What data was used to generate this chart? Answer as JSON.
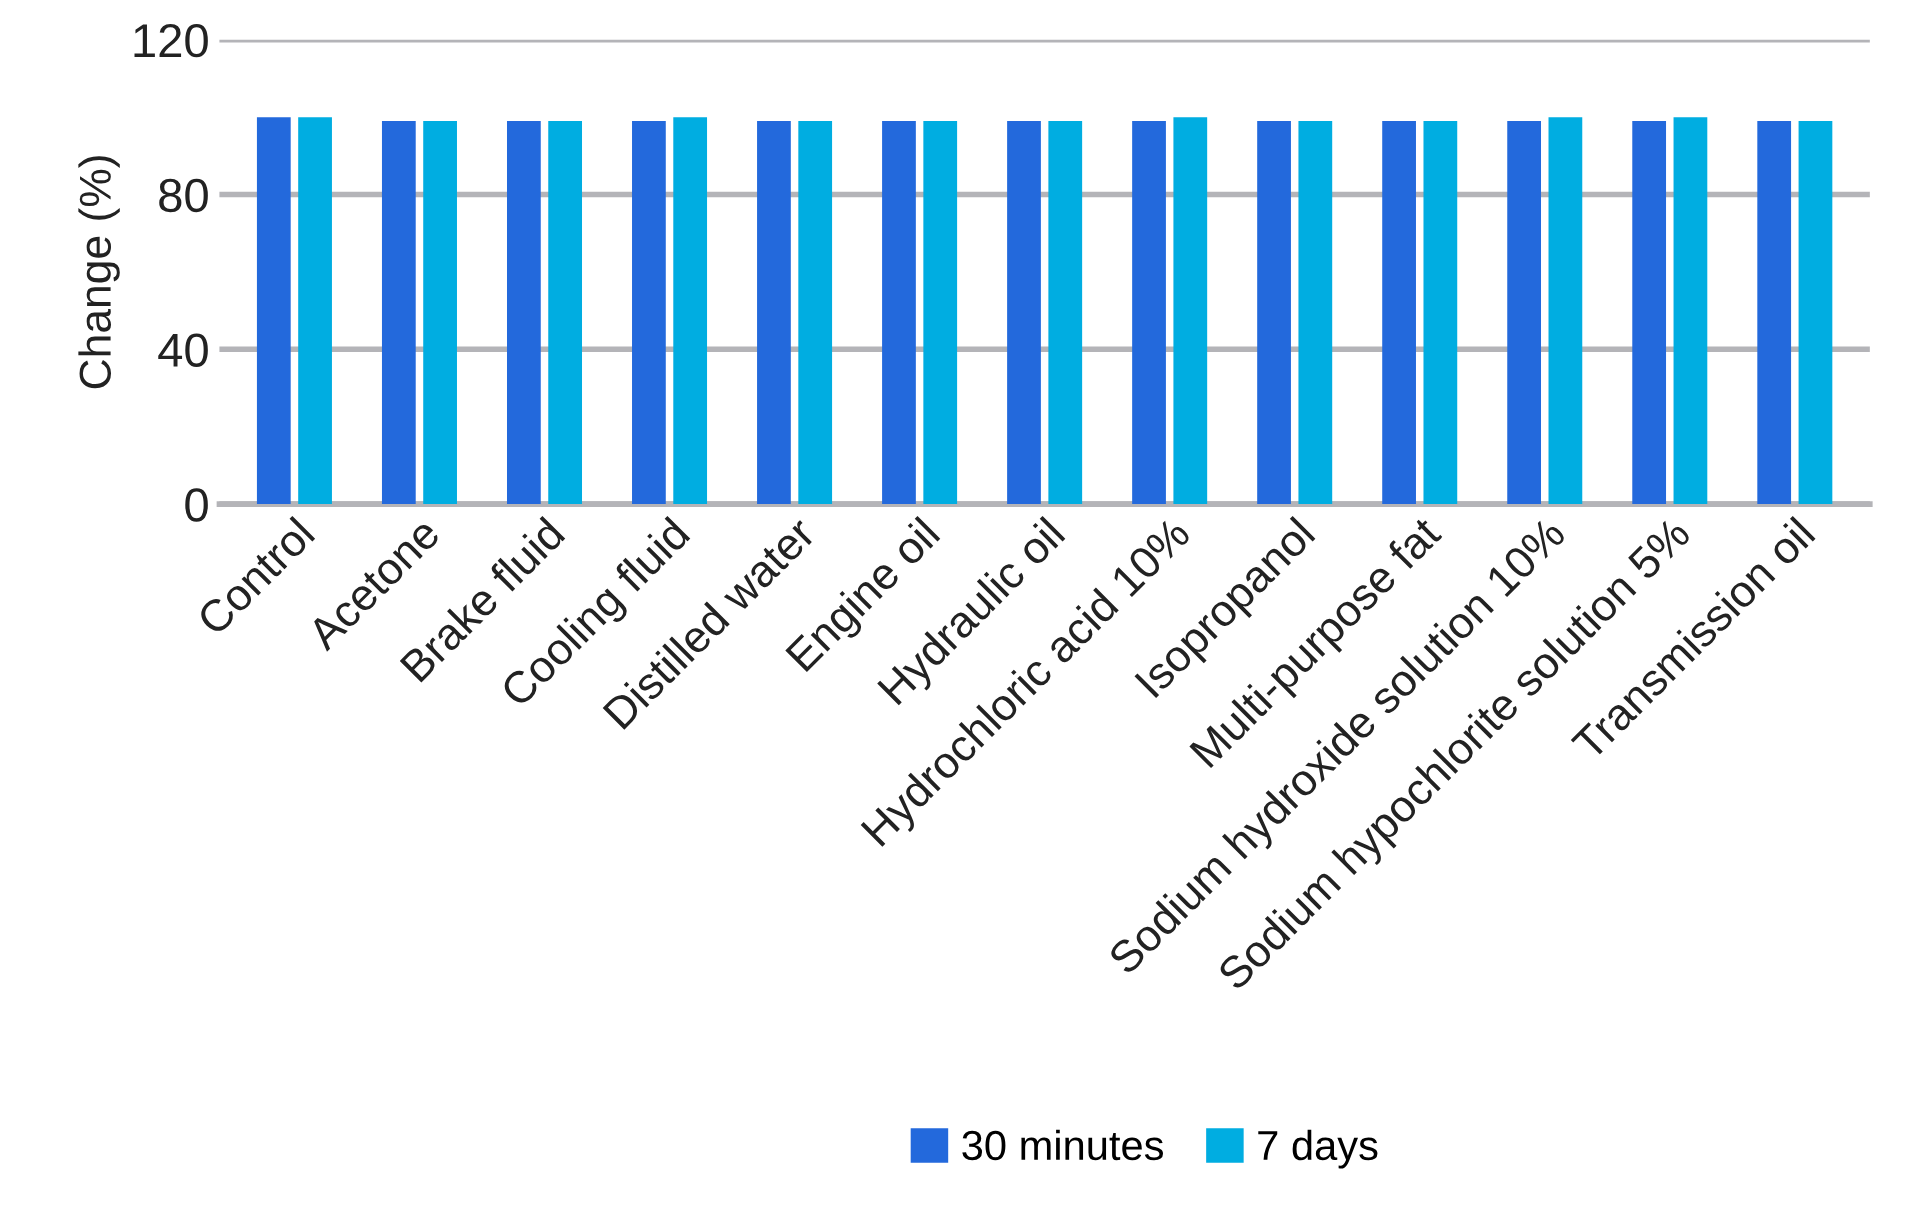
{
  "chart_data": {
    "type": "bar",
    "ylabel": "Change (%)",
    "categories": [
      "Control",
      "Acetone",
      "Brake fluid",
      "Cooling fluid",
      "Distilled water",
      "Engine oil",
      "Hydraulic oil",
      "Hydrochloric acid 10%",
      "Isopropanol",
      "Multi-purpose fat",
      "Sodium hydroxide solution 10%",
      "Sodium hypochlorite solution 5%",
      "Transmission oil"
    ],
    "series": [
      {
        "name": "30 minutes",
        "color": "#2369dc",
        "values": [
          100,
          99,
          99,
          99,
          99,
          99,
          99,
          99,
          99,
          99,
          99,
          99,
          99
        ]
      },
      {
        "name": "7 days",
        "color": "#00ade1",
        "values": [
          100,
          99,
          99,
          100,
          99,
          99,
          99,
          100,
          99,
          99,
          100,
          100,
          99
        ]
      }
    ],
    "ylim": [
      0,
      120
    ],
    "yticks": [
      0,
      40,
      80,
      120
    ],
    "grid": "y",
    "legend": "bottom"
  }
}
